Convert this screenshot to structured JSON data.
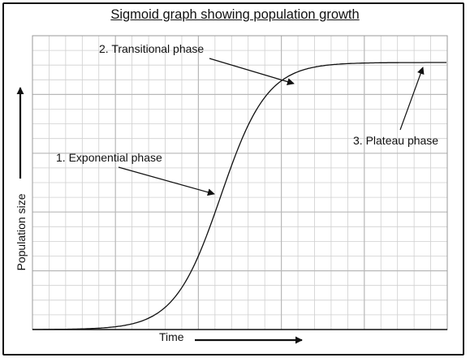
{
  "title": "Sigmoid graph showing population growth",
  "axes": {
    "x_label": "Time",
    "y_label": "Population size"
  },
  "annotations": [
    {
      "id": "exponential",
      "text": "1. Exponential phase"
    },
    {
      "id": "transitional",
      "text": "2. Transitional phase"
    },
    {
      "id": "plateau",
      "text": "3. Plateau phase"
    }
  ],
  "colors": {
    "line": "#111111",
    "grid": "#cfcfcf",
    "grid_major": "#b8b8b8"
  }
}
